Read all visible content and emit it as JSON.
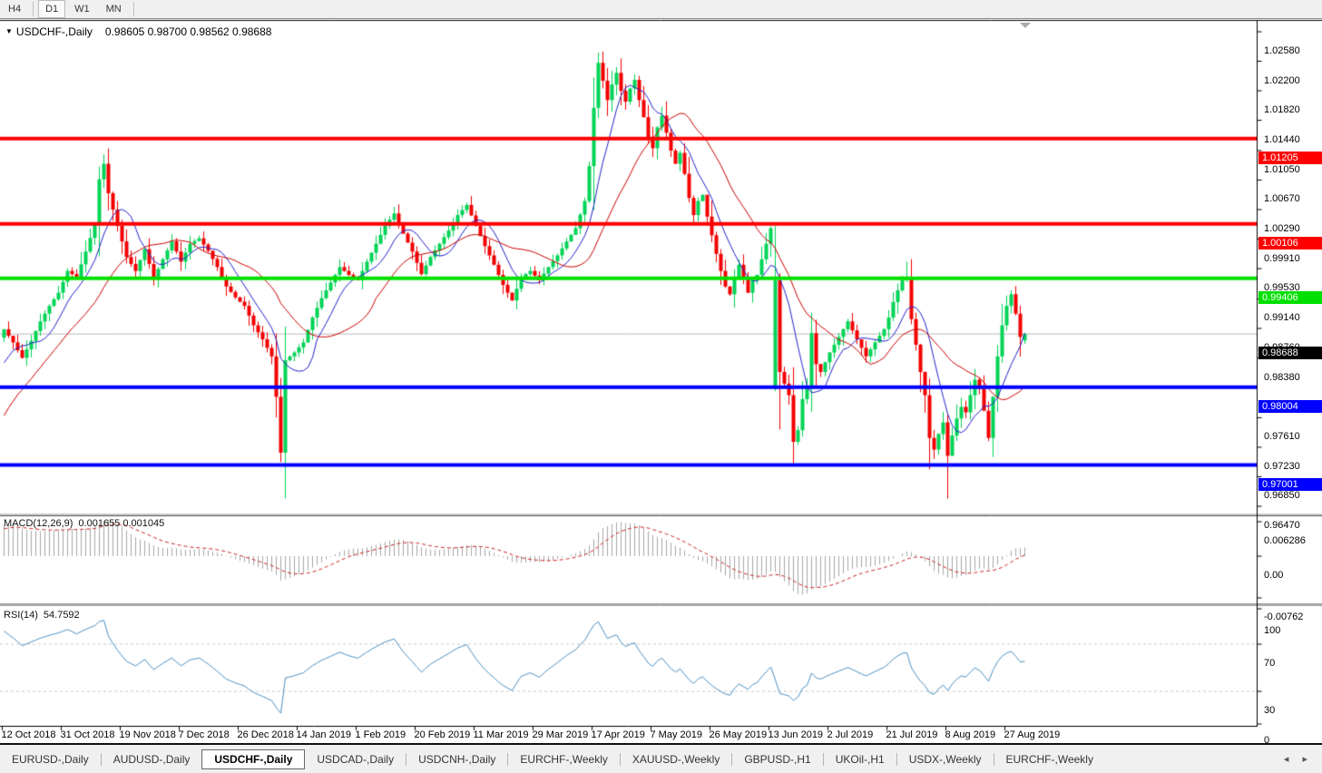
{
  "toolbar": {
    "timeframes": [
      {
        "label": "H4",
        "active": false
      },
      {
        "label": "D1",
        "active": true
      },
      {
        "label": "W1",
        "active": false
      },
      {
        "label": "MN",
        "active": false
      }
    ]
  },
  "chart": {
    "title_symbol": "USDCHF-,Daily",
    "title_ohlc": "0.98605 0.98700 0.98562 0.98688"
  },
  "indicators": {
    "macd": {
      "label": "MACD(12,26,9)",
      "values": "0.001655 0.001045"
    },
    "rsi": {
      "label": "RSI(14)",
      "value": "54.7592"
    }
  },
  "chart_data": {
    "type": "candlestick",
    "symbol": "USDCHF-",
    "timeframe": "Daily",
    "current_ohlc": {
      "open": 0.98605,
      "high": 0.987,
      "low": 0.98562,
      "close": 0.98688
    },
    "candle_count": 226,
    "price_axis_range": [
      0.9647,
      1.0258
    ],
    "price_ticks": [
      "1.02580",
      "1.02200",
      "1.01820",
      "1.01440",
      "1.01050",
      "1.00670",
      "1.00290",
      "0.99910",
      "0.99530",
      "0.99140",
      "0.98760",
      "0.98380",
      "0.97610",
      "0.97230",
      "0.96850",
      "0.96470"
    ],
    "levels": [
      {
        "label": "1.01205",
        "price": 1.01205,
        "color": "#ff0000"
      },
      {
        "label": "1.00106",
        "price": 1.00106,
        "color": "#ff0000"
      },
      {
        "label": "0.99406",
        "price": 0.99406,
        "color": "#00e000"
      },
      {
        "label": "0.98004",
        "price": 0.98004,
        "color": "#0000ff"
      },
      {
        "label": "0.97001",
        "price": 0.97001,
        "color": "#0000ff"
      }
    ],
    "current_price": {
      "label": "0.98688",
      "price": 0.98688,
      "color": "#000000"
    },
    "macd_ticks": [
      {
        "label": "0.006286",
        "value": 0.006286
      },
      {
        "label": "0.00",
        "value": 0
      },
      {
        "label": "-0.00762",
        "value": -0.00762
      }
    ],
    "rsi_ticks": [
      {
        "label": "100",
        "value": 100
      },
      {
        "label": "70",
        "value": 70
      },
      {
        "label": "30",
        "value": 30
      },
      {
        "label": "0",
        "value": 0
      }
    ],
    "rsi_level_lines": [
      70,
      30
    ],
    "dates": [
      "12 Oct 2018",
      "31 Oct 2018",
      "19 Nov 2018",
      "7 Dec 2018",
      "26 Dec 2018",
      "14 Jan 2019",
      "1 Feb 2019",
      "20 Feb 2019",
      "11 Mar 2019",
      "29 Mar 2019",
      "17 Apr 2019",
      "7 May 2019",
      "26 May 2019",
      "13 Jun 2019",
      "2 Jul 2019",
      "21 Jul 2019",
      "8 Aug 2019",
      "27 Aug 2019"
    ],
    "close_anchors": [
      [
        0,
        0.9875
      ],
      [
        2,
        0.9858
      ],
      [
        4,
        0.9838
      ],
      [
        6,
        0.986
      ],
      [
        8,
        0.9885
      ],
      [
        10,
        0.9905
      ],
      [
        12,
        0.9922
      ],
      [
        14,
        0.995
      ],
      [
        16,
        0.9942
      ],
      [
        18,
        0.9975
      ],
      [
        20,
        1.001
      ],
      [
        21,
        1.0068
      ],
      [
        22,
        1.0088
      ],
      [
        23,
        1.005
      ],
      [
        25,
        1.0008
      ],
      [
        27,
        0.9968
      ],
      [
        29,
        0.995
      ],
      [
        31,
        0.9978
      ],
      [
        33,
        0.994
      ],
      [
        35,
        0.9965
      ],
      [
        37,
        0.9988
      ],
      [
        39,
        0.9962
      ],
      [
        41,
        0.9985
      ],
      [
        43,
        0.9992
      ],
      [
        45,
        0.9976
      ],
      [
        47,
        0.9955
      ],
      [
        49,
        0.993
      ],
      [
        51,
        0.9916
      ],
      [
        53,
        0.9905
      ],
      [
        55,
        0.988
      ],
      [
        57,
        0.9862
      ],
      [
        59,
        0.984
      ],
      [
        60,
        0.9788
      ],
      [
        61,
        0.9716
      ],
      [
        62,
        0.9835
      ],
      [
        64,
        0.9845
      ],
      [
        66,
        0.9858
      ],
      [
        68,
        0.989
      ],
      [
        70,
        0.9915
      ],
      [
        72,
        0.9935
      ],
      [
        74,
        0.9955
      ],
      [
        76,
        0.9945
      ],
      [
        78,
        0.9938
      ],
      [
        80,
        0.9962
      ],
      [
        82,
        0.9985
      ],
      [
        84,
        1.0008
      ],
      [
        86,
        1.0024
      ],
      [
        88,
        0.9998
      ],
      [
        90,
        0.9975
      ],
      [
        92,
        0.9946
      ],
      [
        94,
        0.9968
      ],
      [
        96,
        0.9985
      ],
      [
        98,
        1.0002
      ],
      [
        100,
        1.0022
      ],
      [
        102,
        1.0035
      ],
      [
        104,
        1.0008
      ],
      [
        106,
        0.9982
      ],
      [
        108,
        0.9958
      ],
      [
        110,
        0.9932
      ],
      [
        112,
        0.9912
      ],
      [
        114,
        0.9942
      ],
      [
        116,
        0.995
      ],
      [
        118,
        0.9938
      ],
      [
        120,
        0.9955
      ],
      [
        122,
        0.997
      ],
      [
        124,
        0.9988
      ],
      [
        126,
        1.0005
      ],
      [
        128,
        1.004
      ],
      [
        129,
        1.0085
      ],
      [
        130,
        1.016
      ],
      [
        131,
        1.0218
      ],
      [
        132,
        1.0195
      ],
      [
        133,
        1.017
      ],
      [
        134,
        1.019
      ],
      [
        135,
        1.0205
      ],
      [
        136,
        1.0182
      ],
      [
        137,
        1.0168
      ],
      [
        138,
        1.0185
      ],
      [
        139,
        1.0196
      ],
      [
        140,
        1.017
      ],
      [
        141,
        1.0148
      ],
      [
        142,
        1.0122
      ],
      [
        143,
        1.0108
      ],
      [
        144,
        1.0135
      ],
      [
        145,
        1.015
      ],
      [
        146,
        1.0128
      ],
      [
        147,
        1.0105
      ],
      [
        148,
        1.0088
      ],
      [
        149,
        1.0102
      ],
      [
        150,
        1.0075
      ],
      [
        151,
        1.0044
      ],
      [
        152,
        1.0022
      ],
      [
        153,
        1.004
      ],
      [
        154,
        1.0048
      ],
      [
        155,
        1.002
      ],
      [
        156,
        0.9996
      ],
      [
        157,
        0.9972
      ],
      [
        158,
        0.995
      ],
      [
        159,
        0.993
      ],
      [
        160,
        0.992
      ],
      [
        161,
        0.9942
      ],
      [
        162,
        0.9958
      ],
      [
        163,
        0.994
      ],
      [
        164,
        0.9922
      ],
      [
        165,
        0.9938
      ],
      [
        166,
        0.9945
      ],
      [
        168,
        0.9985
      ],
      [
        169,
        1.0005
      ],
      [
        170,
        0.9938
      ],
      [
        171,
        0.982
      ],
      [
        172,
        0.9805
      ],
      [
        173,
        0.979
      ],
      [
        174,
        0.973
      ],
      [
        175,
        0.9745
      ],
      [
        176,
        0.9785
      ],
      [
        177,
        0.98
      ],
      [
        178,
        0.987
      ],
      [
        179,
        0.983
      ],
      [
        180,
        0.982
      ],
      [
        182,
        0.9845
      ],
      [
        184,
        0.9865
      ],
      [
        186,
        0.9885
      ],
      [
        188,
        0.9862
      ],
      [
        190,
        0.984
      ],
      [
        192,
        0.9858
      ],
      [
        194,
        0.9875
      ],
      [
        195,
        0.989
      ],
      [
        196,
        0.991
      ],
      [
        197,
        0.9925
      ],
      [
        198,
        0.9938
      ],
      [
        199,
        0.994
      ],
      [
        200,
        0.9888
      ],
      [
        201,
        0.9855
      ],
      [
        202,
        0.982
      ],
      [
        203,
        0.979
      ],
      [
        204,
        0.9735
      ],
      [
        205,
        0.972
      ],
      [
        206,
        0.974
      ],
      [
        207,
        0.9755
      ],
      [
        208,
        0.9712
      ],
      [
        209,
        0.9738
      ],
      [
        210,
        0.976
      ],
      [
        211,
        0.9775
      ],
      [
        212,
        0.9768
      ],
      [
        213,
        0.979
      ],
      [
        214,
        0.981
      ],
      [
        215,
        0.9798
      ],
      [
        216,
        0.977
      ],
      [
        217,
        0.9735
      ],
      [
        218,
        0.9788
      ],
      [
        219,
        0.984
      ],
      [
        220,
        0.988
      ],
      [
        221,
        0.9905
      ],
      [
        222,
        0.992
      ],
      [
        223,
        0.9895
      ],
      [
        224,
        0.9865
      ],
      [
        225,
        0.98688
      ]
    ],
    "candle_overrides": {
      "61": {
        "l": 0.9704
      },
      "131": {
        "h": 1.0231
      },
      "170": {
        "o": 0.9798,
        "h": 1.0008,
        "l": 0.9795,
        "c": 0.9938
      },
      "174": {
        "l": 0.97
      },
      "199": {
        "h": 0.9962
      },
      "208": {
        "l": 0.9657
      },
      "225": {
        "o": 0.98605,
        "h": 0.987,
        "l": 0.98562,
        "c": 0.98688
      }
    },
    "colors": {
      "bull": "#00d455",
      "bear": "#f40000",
      "ma_fast": "#2222cc",
      "ma_slow": "#cc0000",
      "macd_hist": "#a6a6a6",
      "macd_signal": "#cc2222",
      "rsi_line": "#4a90c4",
      "rsi_levels": "#c8c8c8",
      "current_line": "#bbbbbb"
    }
  },
  "tabs": {
    "items": [
      {
        "label": "EURUSD-,Daily",
        "active": false
      },
      {
        "label": "AUDUSD-,Daily",
        "active": false
      },
      {
        "label": "USDCHF-,Daily",
        "active": true
      },
      {
        "label": "USDCAD-,Daily",
        "active": false
      },
      {
        "label": "USDCNH-,Daily",
        "active": false
      },
      {
        "label": "EURCHF-,Weekly",
        "active": false
      },
      {
        "label": "XAUUSD-,Weekly",
        "active": false
      },
      {
        "label": "GBPUSD-,H1",
        "active": false
      },
      {
        "label": "UKOil-,H1",
        "active": false
      },
      {
        "label": "USDX-,Weekly",
        "active": false
      },
      {
        "label": "EURCHF-,Weekly",
        "active": false
      }
    ],
    "scroll_arrows": "◂ ▸"
  }
}
